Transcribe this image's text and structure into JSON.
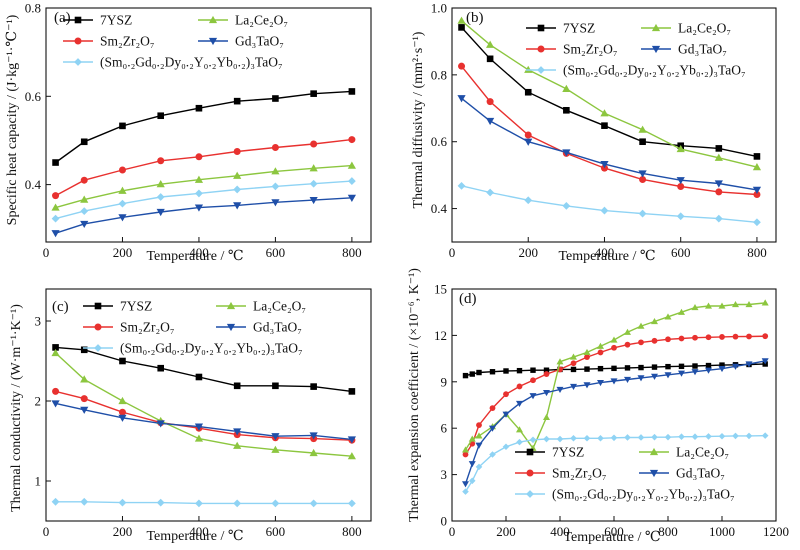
{
  "chart_data": [
    {
      "type": "line",
      "panel_label": "(a)",
      "xlabel": "Temperature / ℃",
      "ylabel": "Specific heat capacity / (J·kg⁻¹·℃⁻¹)",
      "xlim": [
        0,
        850
      ],
      "ylim": [
        0.27,
        0.8
      ],
      "xticks": [
        0,
        200,
        400,
        600,
        800
      ],
      "yticks": [
        0.4,
        0.6,
        0.8
      ],
      "legend_position": "top",
      "series": [
        {
          "name": "7YSZ",
          "color": "#000000",
          "marker": "square",
          "x": [
            25,
            100,
            200,
            300,
            400,
            500,
            600,
            700,
            800
          ],
          "y": [
            0.45,
            0.497,
            0.533,
            0.556,
            0.573,
            0.589,
            0.595,
            0.606,
            0.611
          ]
        },
        {
          "name": "Sm₂Zr₂O₇",
          "color": "#e8312f",
          "marker": "circle",
          "x": [
            25,
            100,
            200,
            300,
            400,
            500,
            600,
            700,
            800
          ],
          "y": [
            0.375,
            0.41,
            0.433,
            0.454,
            0.463,
            0.475,
            0.484,
            0.492,
            0.502
          ]
        },
        {
          "name": "La₂Ce₂O₇",
          "color": "#8cc63f",
          "marker": "triangle-up",
          "x": [
            25,
            100,
            200,
            300,
            400,
            500,
            600,
            700,
            800
          ],
          "y": [
            0.348,
            0.366,
            0.386,
            0.401,
            0.411,
            0.42,
            0.43,
            0.437,
            0.443
          ]
        },
        {
          "name": "Gd₃TaO₇",
          "color": "#1f4fa8",
          "marker": "triangle-down",
          "x": [
            25,
            100,
            200,
            300,
            400,
            500,
            600,
            700,
            800
          ],
          "y": [
            0.29,
            0.311,
            0.326,
            0.338,
            0.348,
            0.353,
            0.36,
            0.365,
            0.37
          ]
        },
        {
          "name": "(Sm₀.₂Gd₀.₂Dy₀.₂Y₀.₂Yb₀.₂)₃TaO₇",
          "color": "#8fd3f4",
          "marker": "diamond",
          "x": [
            25,
            100,
            200,
            300,
            400,
            500,
            600,
            700,
            800
          ],
          "y": [
            0.323,
            0.34,
            0.357,
            0.372,
            0.38,
            0.389,
            0.396,
            0.402,
            0.408
          ]
        }
      ]
    },
    {
      "type": "line",
      "panel_label": "(b)",
      "xlabel": "Temperature / ℃",
      "ylabel": "Thermal diffusivity / (mm²·s⁻¹)",
      "xlim": [
        0,
        850
      ],
      "ylim": [
        0.3,
        1.0
      ],
      "xticks": [
        0,
        200,
        400,
        600,
        800
      ],
      "yticks": [
        0.4,
        0.6,
        0.8,
        1.0
      ],
      "legend_position": "top-right",
      "series": [
        {
          "name": "7YSZ",
          "color": "#000000",
          "marker": "square",
          "x": [
            25,
            100,
            200,
            300,
            400,
            500,
            600,
            700,
            800
          ],
          "y": [
            0.942,
            0.848,
            0.748,
            0.694,
            0.648,
            0.6,
            0.588,
            0.58,
            0.556
          ]
        },
        {
          "name": "Sm₂Zr₂O₇",
          "color": "#e8312f",
          "marker": "circle",
          "x": [
            25,
            100,
            200,
            300,
            400,
            500,
            600,
            700,
            800
          ],
          "y": [
            0.826,
            0.72,
            0.62,
            0.565,
            0.521,
            0.487,
            0.466,
            0.45,
            0.442
          ]
        },
        {
          "name": "La₂Ce₂O₇",
          "color": "#8cc63f",
          "marker": "triangle-up",
          "x": [
            25,
            100,
            200,
            300,
            400,
            500,
            600,
            700,
            800
          ],
          "y": [
            0.962,
            0.89,
            0.815,
            0.758,
            0.685,
            0.636,
            0.578,
            0.552,
            0.524
          ]
        },
        {
          "name": "Gd₃TaO₇",
          "color": "#1f4fa8",
          "marker": "triangle-down",
          "x": [
            25,
            100,
            200,
            300,
            400,
            500,
            600,
            700,
            800
          ],
          "y": [
            0.73,
            0.662,
            0.6,
            0.568,
            0.533,
            0.505,
            0.485,
            0.475,
            0.456
          ]
        },
        {
          "name": "(Sm₀.₂Gd₀.₂Dy₀.₂Y₀.₂Yb₀.₂)₃TaO₇",
          "color": "#8fd3f4",
          "marker": "diamond",
          "x": [
            25,
            100,
            200,
            300,
            400,
            500,
            600,
            700,
            800
          ],
          "y": [
            0.468,
            0.448,
            0.425,
            0.408,
            0.394,
            0.385,
            0.377,
            0.37,
            0.359
          ]
        }
      ]
    },
    {
      "type": "line",
      "panel_label": "(c)",
      "xlabel": "Temperature / ℃",
      "ylabel": "Thermal conductivity / (W·m⁻¹·K⁻¹)",
      "xlim": [
        0,
        850
      ],
      "ylim": [
        0.5,
        3.4
      ],
      "xticks": [
        0,
        200,
        400,
        600,
        800
      ],
      "yticks": [
        1,
        2,
        3
      ],
      "legend_position": "top",
      "series": [
        {
          "name": "7YSZ",
          "color": "#000000",
          "marker": "square",
          "x": [
            25,
            100,
            200,
            300,
            400,
            500,
            600,
            700,
            800
          ],
          "y": [
            2.67,
            2.64,
            2.5,
            2.41,
            2.3,
            2.19,
            2.19,
            2.18,
            2.12
          ]
        },
        {
          "name": "Sm₂Zr₂O₇",
          "color": "#e8312f",
          "marker": "circle",
          "x": [
            25,
            100,
            200,
            300,
            400,
            500,
            600,
            700,
            800
          ],
          "y": [
            2.12,
            2.03,
            1.86,
            1.73,
            1.66,
            1.58,
            1.54,
            1.53,
            1.51
          ]
        },
        {
          "name": "La₂Ce₂O₇",
          "color": "#8cc63f",
          "marker": "triangle-up",
          "x": [
            25,
            100,
            200,
            300,
            400,
            500,
            600,
            700,
            800
          ],
          "y": [
            2.6,
            2.27,
            2.0,
            1.75,
            1.53,
            1.44,
            1.39,
            1.35,
            1.31
          ]
        },
        {
          "name": "Gd₃TaO₇",
          "color": "#1f4fa8",
          "marker": "triangle-down",
          "x": [
            25,
            100,
            200,
            300,
            400,
            500,
            600,
            700,
            800
          ],
          "y": [
            1.97,
            1.89,
            1.79,
            1.72,
            1.68,
            1.62,
            1.56,
            1.57,
            1.52
          ]
        },
        {
          "name": "(Sm₀.₂Gd₀.₂Dy₀.₂Y₀.₂Yb₀.₂)₃TaO₇",
          "color": "#8fd3f4",
          "marker": "diamond",
          "x": [
            25,
            100,
            200,
            300,
            400,
            500,
            600,
            700,
            800
          ],
          "y": [
            0.74,
            0.74,
            0.73,
            0.73,
            0.72,
            0.72,
            0.72,
            0.72,
            0.72
          ]
        }
      ]
    },
    {
      "type": "line",
      "panel_label": "(d)",
      "xlabel": "Temperature / ℃",
      "ylabel": "Thermal expansion coefficient / (×10⁻⁶, K⁻¹)",
      "xlim": [
        0,
        1200
      ],
      "ylim": [
        0,
        15
      ],
      "xticks": [
        0,
        200,
        400,
        600,
        800,
        1000,
        1200
      ],
      "yticks": [
        0,
        3,
        6,
        9,
        12,
        15
      ],
      "legend_position": "bottom",
      "series": [
        {
          "name": "7YSZ",
          "color": "#000000",
          "marker": "square",
          "x": [
            50,
            75,
            100,
            150,
            200,
            250,
            300,
            350,
            400,
            450,
            500,
            550,
            600,
            650,
            700,
            750,
            800,
            850,
            900,
            950,
            1000,
            1050,
            1100,
            1160
          ],
          "y": [
            9.4,
            9.5,
            9.6,
            9.65,
            9.7,
            9.72,
            9.75,
            9.75,
            9.8,
            9.8,
            9.82,
            9.85,
            9.87,
            9.9,
            9.92,
            9.95,
            9.98,
            10.0,
            10.02,
            10.05,
            10.08,
            10.1,
            10.12,
            10.15
          ]
        },
        {
          "name": "Sm₂Zr₂O₇",
          "color": "#e8312f",
          "marker": "circle",
          "x": [
            50,
            75,
            100,
            150,
            200,
            250,
            300,
            350,
            400,
            450,
            500,
            550,
            600,
            650,
            700,
            750,
            800,
            850,
            900,
            950,
            1000,
            1050,
            1100,
            1160
          ],
          "y": [
            4.3,
            5.0,
            6.2,
            7.3,
            8.2,
            8.7,
            9.1,
            9.5,
            9.8,
            10.2,
            10.6,
            10.9,
            11.2,
            11.4,
            11.55,
            11.65,
            11.75,
            11.8,
            11.85,
            11.88,
            11.9,
            11.92,
            11.93,
            11.95
          ]
        },
        {
          "name": "La₂Ce₂O₇",
          "color": "#8cc63f",
          "marker": "triangle-up",
          "x": [
            50,
            75,
            100,
            150,
            200,
            250,
            300,
            350,
            400,
            450,
            500,
            550,
            600,
            650,
            700,
            750,
            800,
            850,
            900,
            950,
            1000,
            1050,
            1100,
            1160
          ],
          "y": [
            4.6,
            5.3,
            5.5,
            6.1,
            6.9,
            5.9,
            4.7,
            6.7,
            10.3,
            10.6,
            10.9,
            11.3,
            11.7,
            12.2,
            12.6,
            12.9,
            13.2,
            13.5,
            13.8,
            13.9,
            13.9,
            14.0,
            14.0,
            14.1
          ]
        },
        {
          "name": "Gd₃TaO₇",
          "color": "#1f4fa8",
          "marker": "triangle-down",
          "x": [
            50,
            75,
            100,
            150,
            200,
            250,
            300,
            350,
            400,
            450,
            500,
            550,
            600,
            650,
            700,
            750,
            800,
            850,
            900,
            950,
            1000,
            1050,
            1100,
            1160
          ],
          "y": [
            2.4,
            3.7,
            4.9,
            6.0,
            6.9,
            7.6,
            8.1,
            8.3,
            8.5,
            8.7,
            8.8,
            8.95,
            9.05,
            9.15,
            9.25,
            9.35,
            9.45,
            9.55,
            9.65,
            9.75,
            9.85,
            10.0,
            10.15,
            10.35
          ]
        },
        {
          "name": "(Sm₀.₂Gd₀.₂Dy₀.₂Y₀.₂Yb₀.₂)₃TaO₇",
          "color": "#8fd3f4",
          "marker": "diamond",
          "x": [
            50,
            75,
            100,
            150,
            200,
            250,
            300,
            350,
            400,
            450,
            500,
            550,
            600,
            650,
            700,
            750,
            800,
            850,
            900,
            950,
            1000,
            1050,
            1100,
            1160
          ],
          "y": [
            1.9,
            2.6,
            3.5,
            4.3,
            4.8,
            5.1,
            5.25,
            5.3,
            5.3,
            5.35,
            5.35,
            5.35,
            5.38,
            5.4,
            5.4,
            5.42,
            5.42,
            5.45,
            5.45,
            5.47,
            5.48,
            5.5,
            5.5,
            5.52
          ]
        }
      ]
    }
  ]
}
